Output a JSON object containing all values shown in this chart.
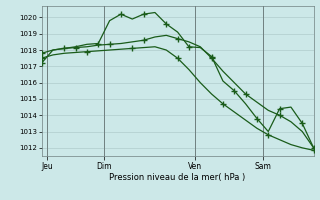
{
  "background_color": "#cce8e8",
  "grid_color": "#b0cccc",
  "line_color": "#1a5c1a",
  "yticks": [
    1012,
    1013,
    1014,
    1015,
    1016,
    1017,
    1018,
    1019,
    1020
  ],
  "xlabel": "Pression niveau de la mer( hPa )",
  "day_labels": [
    "Jeu",
    "Dim",
    "Ven",
    "Sam"
  ],
  "day_positions": [
    0.5,
    5.5,
    13.5,
    19.5
  ],
  "series1_x": [
    0,
    1,
    2,
    3,
    4,
    5,
    6,
    7,
    8,
    9,
    10,
    11,
    12,
    13,
    14,
    15,
    16,
    17,
    18,
    19,
    20,
    21,
    22,
    23,
    24
  ],
  "series1_y": [
    1017.2,
    1018.0,
    1018.1,
    1018.2,
    1018.35,
    1018.4,
    1019.8,
    1020.2,
    1019.9,
    1020.2,
    1020.3,
    1019.6,
    1019.1,
    1018.2,
    1018.15,
    1017.6,
    1016.1,
    1015.5,
    1014.7,
    1013.8,
    1013.0,
    1014.4,
    1014.5,
    1013.5,
    1012.0
  ],
  "series2_x": [
    0,
    1,
    2,
    3,
    4,
    5,
    6,
    7,
    8,
    9,
    10,
    11,
    12,
    13,
    14,
    15,
    16,
    17,
    18,
    19,
    20,
    21,
    22,
    23,
    24
  ],
  "series2_y": [
    1017.8,
    1018.0,
    1018.1,
    1018.15,
    1018.2,
    1018.3,
    1018.35,
    1018.4,
    1018.5,
    1018.6,
    1018.8,
    1018.9,
    1018.7,
    1018.5,
    1018.2,
    1017.5,
    1016.7,
    1016.0,
    1015.3,
    1014.8,
    1014.3,
    1014.0,
    1013.6,
    1013.0,
    1012.0
  ],
  "series3_x": [
    0,
    1,
    2,
    3,
    4,
    5,
    6,
    7,
    8,
    9,
    10,
    11,
    12,
    13,
    14,
    15,
    16,
    17,
    18,
    19,
    20,
    21,
    22,
    23,
    24
  ],
  "series3_y": [
    1017.5,
    1017.7,
    1017.8,
    1017.85,
    1017.9,
    1017.95,
    1018.0,
    1018.05,
    1018.1,
    1018.15,
    1018.2,
    1018.0,
    1017.5,
    1016.8,
    1016.0,
    1015.3,
    1014.7,
    1014.2,
    1013.7,
    1013.2,
    1012.8,
    1012.5,
    1012.2,
    1012.0,
    1011.85
  ],
  "markers1_x": [
    0,
    2,
    5,
    7,
    9,
    11,
    13,
    15,
    17,
    19,
    21,
    23
  ],
  "markers1_y": [
    1017.2,
    1018.1,
    1018.4,
    1020.2,
    1020.2,
    1019.6,
    1018.2,
    1017.6,
    1015.5,
    1013.8,
    1014.4,
    1013.5
  ],
  "markers2_x": [
    0,
    3,
    6,
    9,
    12,
    15,
    18,
    21,
    24
  ],
  "markers2_y": [
    1017.8,
    1018.15,
    1018.35,
    1018.6,
    1018.7,
    1017.5,
    1015.3,
    1014.0,
    1012.0
  ],
  "markers3_x": [
    0,
    4,
    8,
    12,
    16,
    20,
    24
  ],
  "markers3_y": [
    1017.5,
    1017.9,
    1018.1,
    1017.5,
    1014.7,
    1012.8,
    1011.85
  ],
  "xlim": [
    0,
    24
  ],
  "ylim": [
    1011.5,
    1020.7
  ]
}
